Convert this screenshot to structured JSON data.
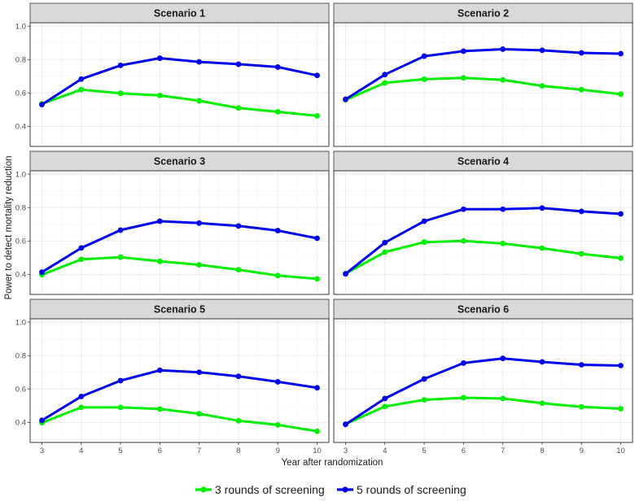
{
  "chart_data": {
    "type": "line",
    "xlabel": "Year after randomization",
    "ylabel": "Power to detect mortality reduction",
    "x": [
      3,
      4,
      5,
      6,
      7,
      8,
      9,
      10
    ],
    "xlim": [
      2.7,
      10.3
    ],
    "ylim": [
      0.28,
      1.02
    ],
    "yticks": [
      0.4,
      0.6,
      0.8,
      1.0
    ],
    "ytick_labels": [
      "0.4",
      "0.6",
      "0.8",
      "1.0"
    ],
    "legend_position": "bottom",
    "series_styles": [
      {
        "name": "3 rounds of screening",
        "color": "#00ee00"
      },
      {
        "name": "5 rounds of screening",
        "color": "#0000ee"
      }
    ],
    "panels": [
      {
        "title": "Scenario 1",
        "series": [
          {
            "name": "3 rounds of screening",
            "values": [
              0.535,
              0.62,
              0.598,
              0.585,
              0.553,
              0.51,
              0.487,
              0.463
            ]
          },
          {
            "name": "5 rounds of screening",
            "values": [
              0.53,
              0.683,
              0.765,
              0.808,
              0.786,
              0.772,
              0.755,
              0.705
            ]
          }
        ]
      },
      {
        "title": "Scenario 2",
        "series": [
          {
            "name": "3 rounds of screening",
            "values": [
              0.558,
              0.66,
              0.682,
              0.69,
              0.678,
              0.642,
              0.62,
              0.593
            ]
          },
          {
            "name": "5 rounds of screening",
            "values": [
              0.562,
              0.71,
              0.82,
              0.85,
              0.862,
              0.855,
              0.84,
              0.835
            ]
          }
        ]
      },
      {
        "title": "Scenario 3",
        "series": [
          {
            "name": "3 rounds of screening",
            "values": [
              0.398,
              0.49,
              0.503,
              0.478,
              0.457,
              0.428,
              0.393,
              0.373
            ]
          },
          {
            "name": "5 rounds of screening",
            "values": [
              0.413,
              0.558,
              0.665,
              0.718,
              0.707,
              0.69,
              0.662,
              0.616
            ]
          }
        ]
      },
      {
        "title": "Scenario 4",
        "series": [
          {
            "name": "3 rounds of screening",
            "values": [
              0.405,
              0.533,
              0.593,
              0.6,
              0.585,
              0.557,
              0.523,
              0.497
            ]
          },
          {
            "name": "5 rounds of screening",
            "values": [
              0.403,
              0.59,
              0.718,
              0.79,
              0.79,
              0.797,
              0.777,
              0.762
            ]
          }
        ]
      },
      {
        "title": "Scenario 5",
        "series": [
          {
            "name": "3 rounds of screening",
            "values": [
              0.398,
              0.49,
              0.49,
              0.48,
              0.452,
              0.41,
              0.385,
              0.347
            ]
          },
          {
            "name": "5 rounds of screening",
            "values": [
              0.412,
              0.555,
              0.65,
              0.712,
              0.7,
              0.676,
              0.643,
              0.607
            ]
          }
        ]
      },
      {
        "title": "Scenario 6",
        "series": [
          {
            "name": "3 rounds of screening",
            "values": [
              0.39,
              0.495,
              0.535,
              0.548,
              0.543,
              0.515,
              0.493,
              0.482
            ]
          },
          {
            "name": "5 rounds of screening",
            "values": [
              0.388,
              0.543,
              0.66,
              0.755,
              0.783,
              0.762,
              0.745,
              0.74
            ]
          }
        ]
      }
    ]
  }
}
